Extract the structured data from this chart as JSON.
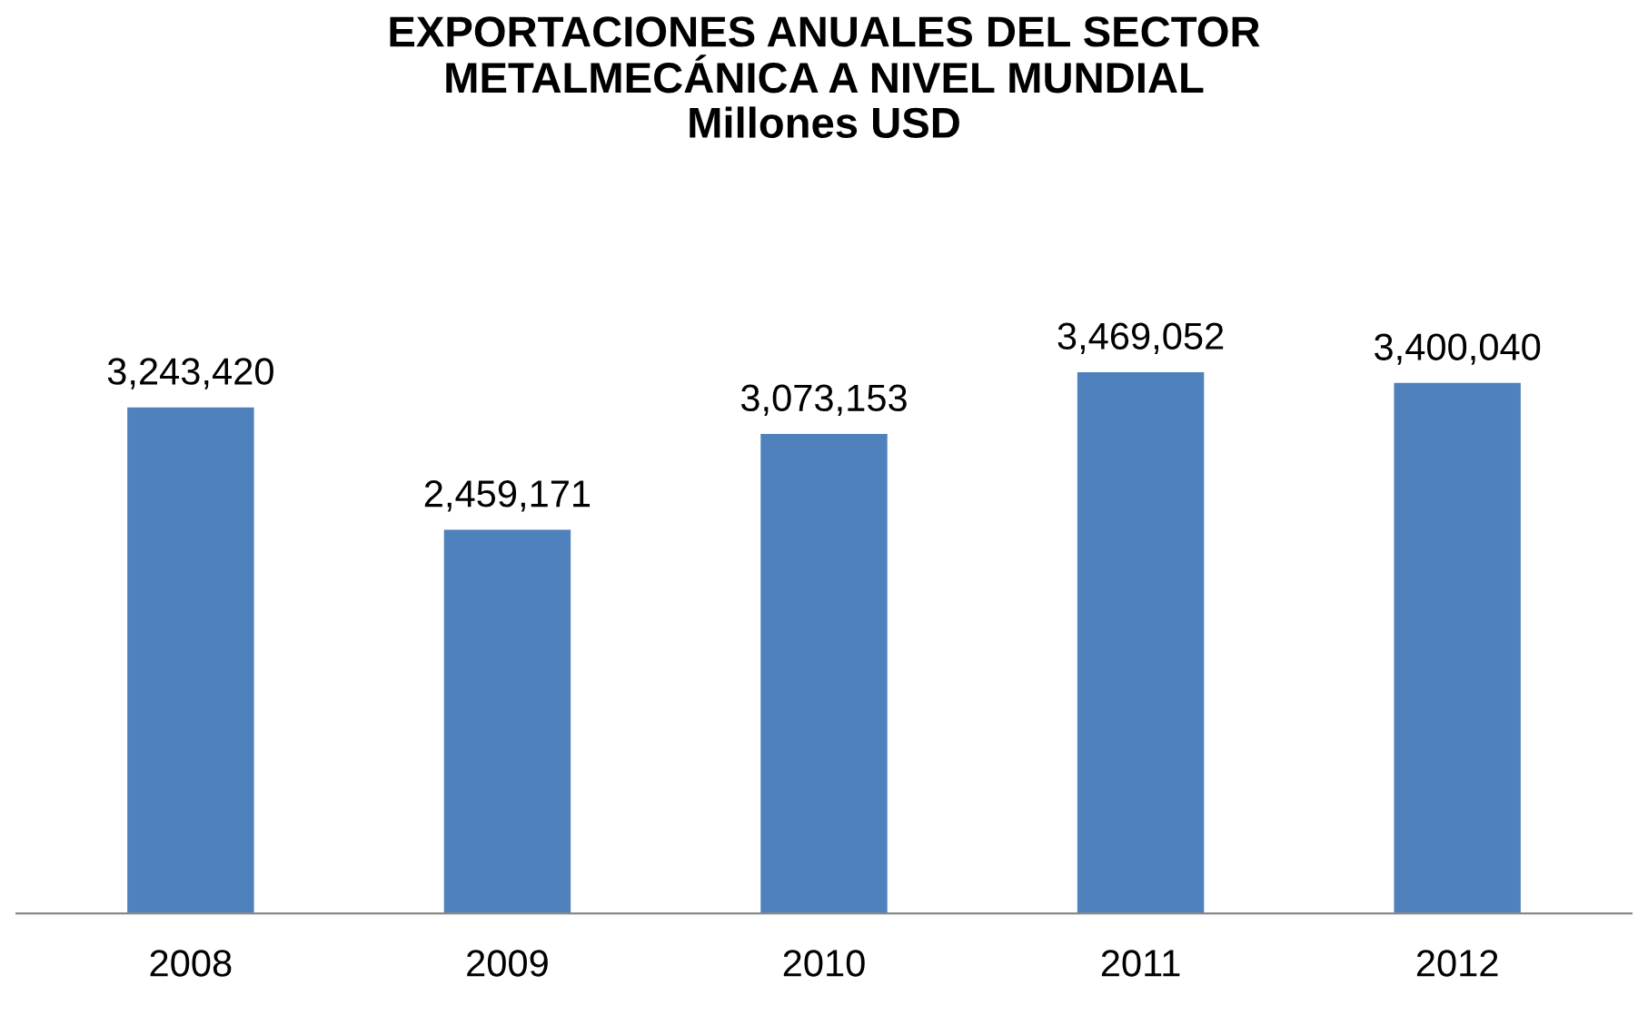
{
  "chart_data": {
    "type": "bar",
    "title": "EXPORTACIONES ANUALES DEL SECTOR\nMETALMECÁNICA A NIVEL MUNDIAL",
    "subtitle": "Millones USD",
    "categories": [
      "2008",
      "2009",
      "2010",
      "2011",
      "2012"
    ],
    "values": [
      3243420,
      2459171,
      3073153,
      3469052,
      3400040
    ],
    "value_labels": [
      "3,243,420",
      "2,459,171",
      "3,073,153",
      "3,469,052",
      "3,400,040"
    ],
    "color": "#4f81bd",
    "grid": false,
    "legend": false
  }
}
